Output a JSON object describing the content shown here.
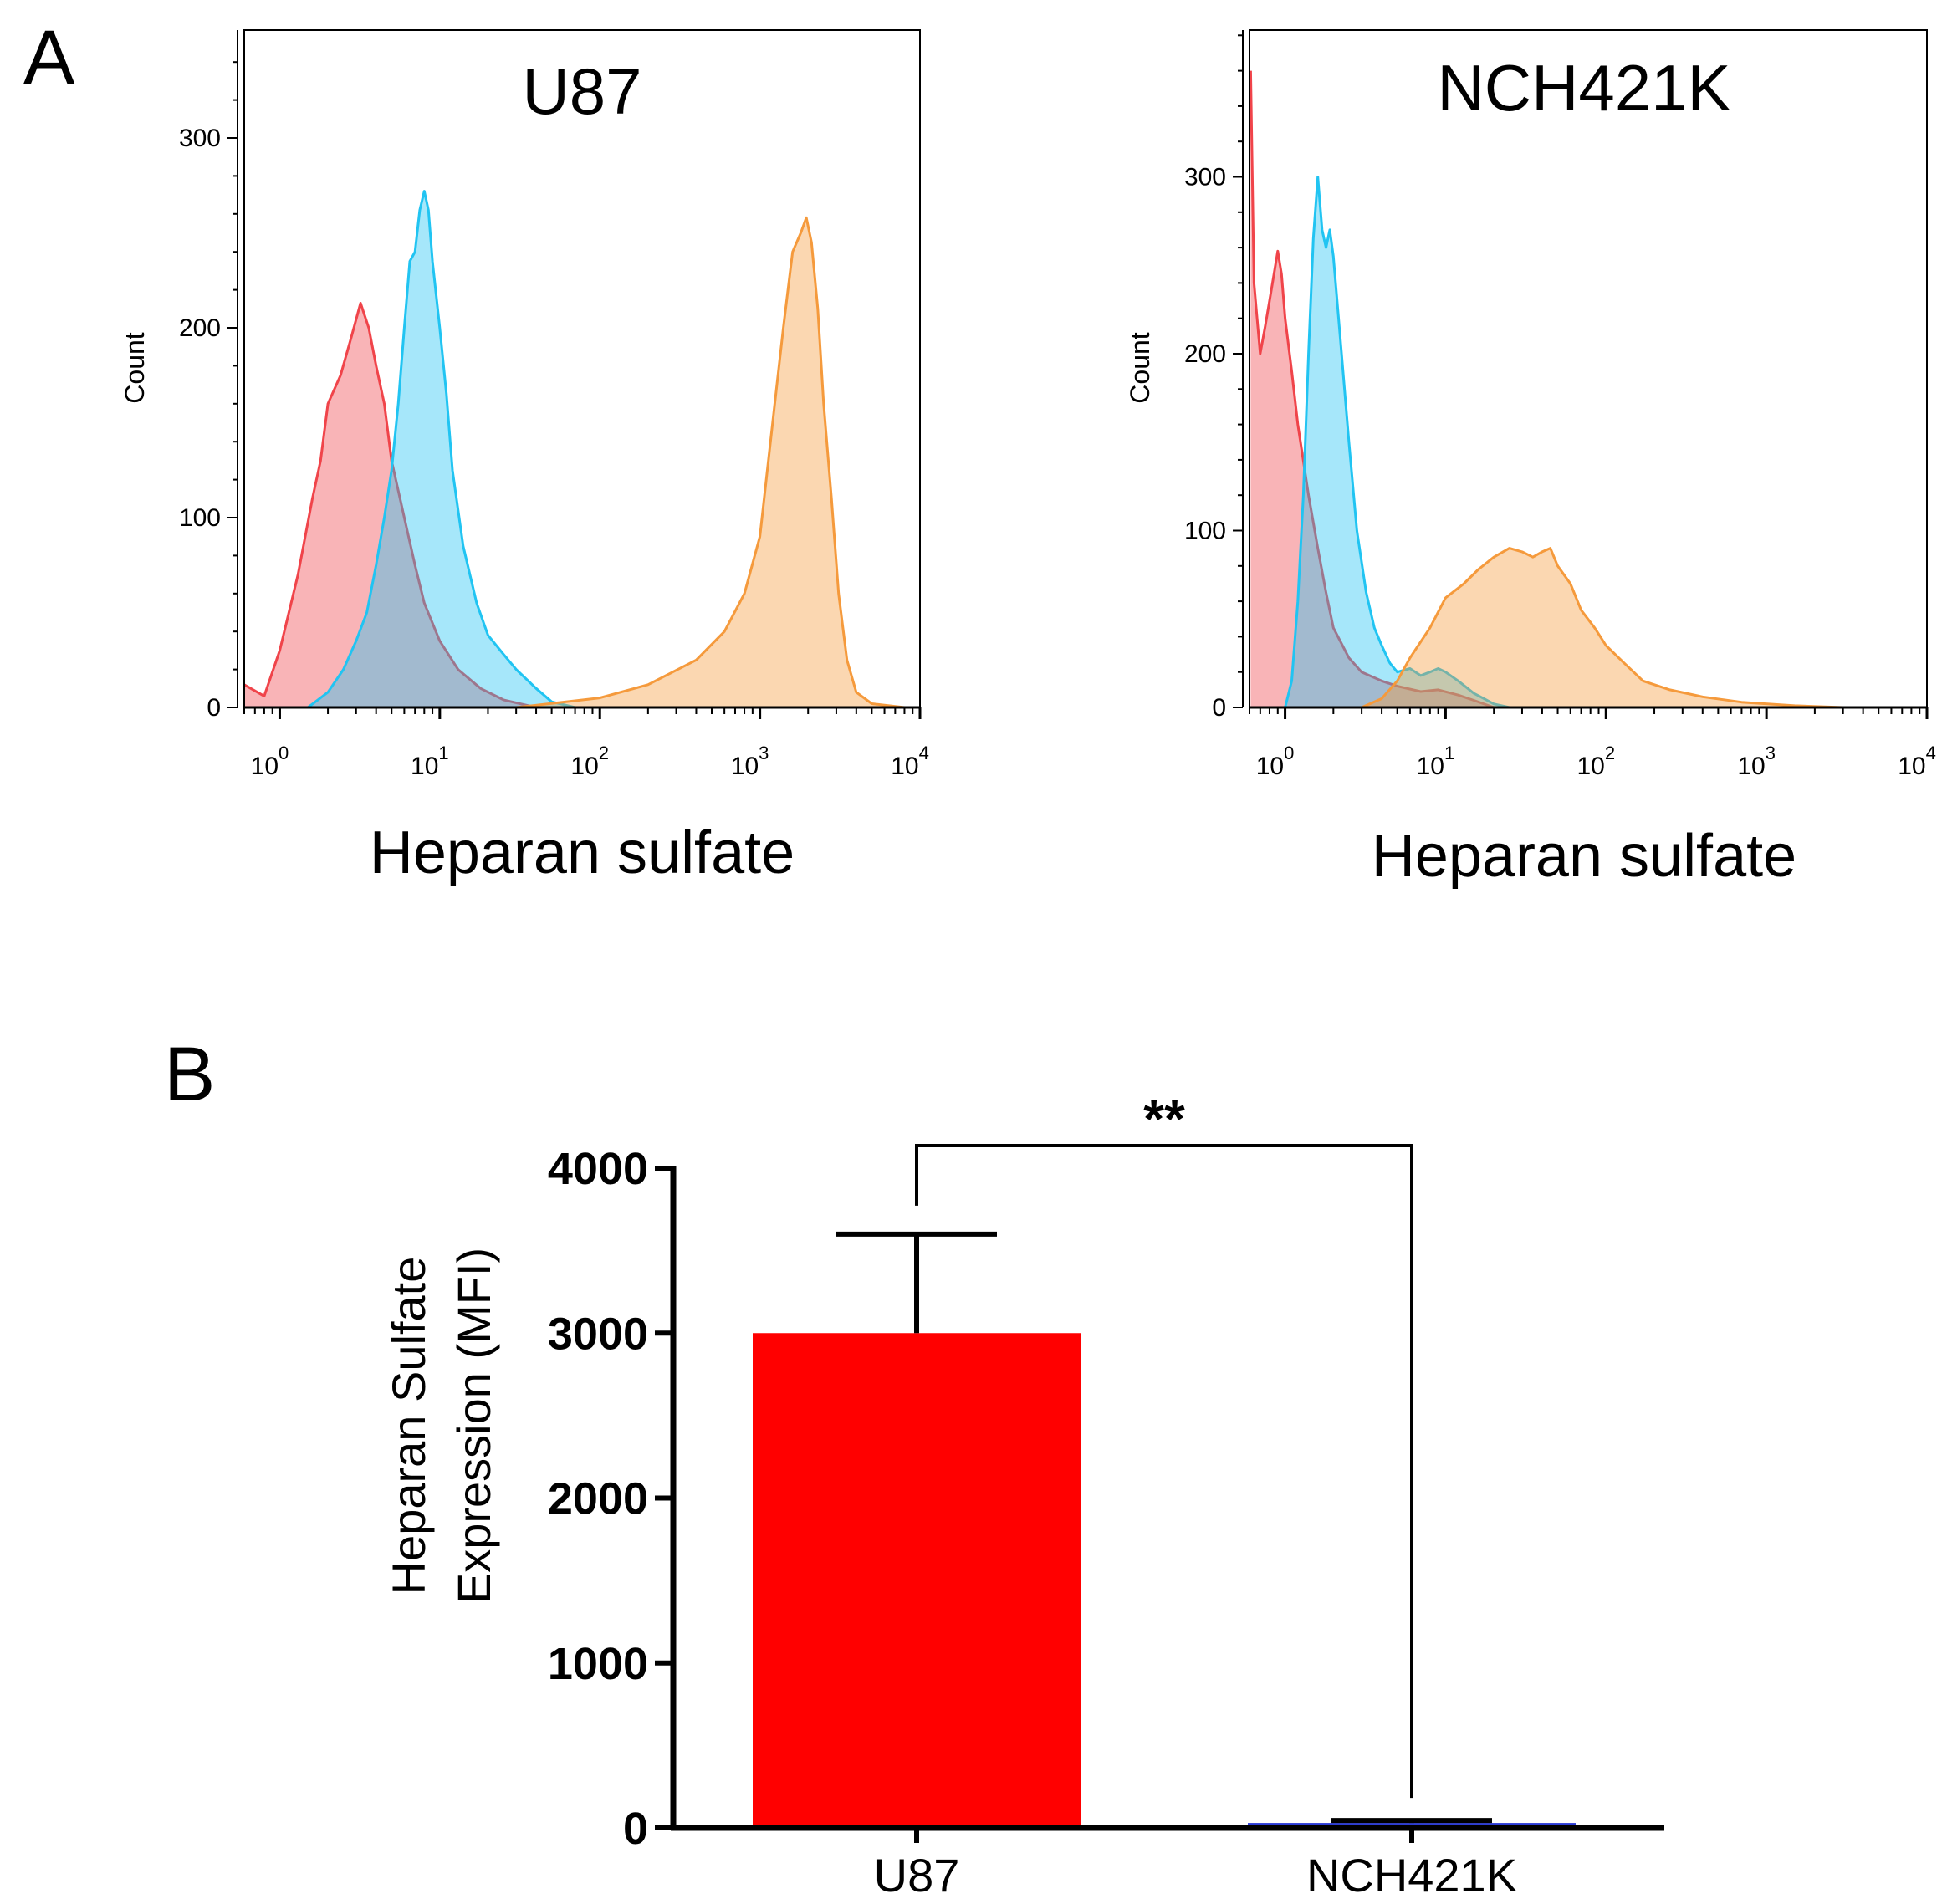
{
  "panels": {
    "a": "A",
    "b": "B"
  },
  "colors": {
    "red": "#f0444a",
    "blue": "#21c4f2",
    "orange": "#f59a3c",
    "bar_red": "#ff0000",
    "bar_blue": "#2b3bd6"
  },
  "chart_data": [
    {
      "type": "area",
      "panel": "A",
      "title": "U87",
      "xlabel": "Heparan sulfate",
      "ylabel": "Count",
      "xscale": "log",
      "xlim": [
        0.6,
        10000
      ],
      "ylim": [
        0,
        360
      ],
      "yticks": [
        0,
        100,
        200,
        300
      ],
      "xticks": [
        {
          "base": "10",
          "exp": "0"
        },
        {
          "base": "10",
          "exp": "1"
        },
        {
          "base": "10",
          "exp": "2"
        },
        {
          "base": "10",
          "exp": "3"
        },
        {
          "base": "10",
          "exp": "4"
        }
      ],
      "series": [
        {
          "color": "red",
          "points": [
            [
              0.6,
              12
            ],
            [
              0.8,
              6
            ],
            [
              1,
              30
            ],
            [
              1.3,
              70
            ],
            [
              1.6,
              110
            ],
            [
              1.8,
              130
            ],
            [
              2,
              160
            ],
            [
              2.4,
              175
            ],
            [
              2.8,
              195
            ],
            [
              3.2,
              213
            ],
            [
              3.6,
              200
            ],
            [
              4,
              180
            ],
            [
              4.5,
              160
            ],
            [
              5,
              130
            ],
            [
              6,
              100
            ],
            [
              7,
              75
            ],
            [
              8,
              55
            ],
            [
              10,
              35
            ],
            [
              13,
              20
            ],
            [
              18,
              10
            ],
            [
              25,
              4
            ],
            [
              40,
              0
            ]
          ]
        },
        {
          "color": "blue",
          "points": [
            [
              1.5,
              0
            ],
            [
              2,
              8
            ],
            [
              2.5,
              20
            ],
            [
              3,
              35
            ],
            [
              3.5,
              50
            ],
            [
              4,
              75
            ],
            [
              4.5,
              100
            ],
            [
              5,
              125
            ],
            [
              5.5,
              160
            ],
            [
              6,
              200
            ],
            [
              6.5,
              235
            ],
            [
              7,
              240
            ],
            [
              7.5,
              262
            ],
            [
              8,
              272
            ],
            [
              8.5,
              262
            ],
            [
              9,
              235
            ],
            [
              10,
              200
            ],
            [
              11,
              165
            ],
            [
              12,
              125
            ],
            [
              14,
              85
            ],
            [
              17,
              55
            ],
            [
              20,
              38
            ],
            [
              25,
              28
            ],
            [
              30,
              20
            ],
            [
              40,
              10
            ],
            [
              50,
              3
            ],
            [
              70,
              0
            ]
          ]
        },
        {
          "color": "orange",
          "points": [
            [
              30,
              0
            ],
            [
              100,
              5
            ],
            [
              200,
              12
            ],
            [
              400,
              25
            ],
            [
              600,
              40
            ],
            [
              800,
              60
            ],
            [
              1000,
              90
            ],
            [
              1200,
              150
            ],
            [
              1400,
              200
            ],
            [
              1600,
              240
            ],
            [
              1800,
              250
            ],
            [
              1950,
              258
            ],
            [
              2100,
              245
            ],
            [
              2300,
              210
            ],
            [
              2500,
              160
            ],
            [
              2800,
              110
            ],
            [
              3100,
              60
            ],
            [
              3500,
              25
            ],
            [
              4000,
              8
            ],
            [
              5000,
              2
            ],
            [
              8000,
              0
            ]
          ]
        }
      ]
    },
    {
      "type": "area",
      "panel": "A",
      "title": "NCH421K",
      "xlabel": "Heparan sulfate",
      "ylabel": "Count",
      "xscale": "log",
      "xlim": [
        0.6,
        10000
      ],
      "ylim": [
        0,
        380
      ],
      "yticks": [
        0,
        100,
        200,
        300
      ],
      "xticks": [
        {
          "base": "10",
          "exp": "0"
        },
        {
          "base": "10",
          "exp": "1"
        },
        {
          "base": "10",
          "exp": "2"
        },
        {
          "base": "10",
          "exp": "3"
        },
        {
          "base": "10",
          "exp": "4"
        }
      ],
      "series": [
        {
          "color": "red",
          "points": [
            [
              0.61,
              360
            ],
            [
              0.64,
              240
            ],
            [
              0.7,
              200
            ],
            [
              0.75,
              215
            ],
            [
              0.8,
              230
            ],
            [
              0.9,
              258
            ],
            [
              0.95,
              245
            ],
            [
              1,
              220
            ],
            [
              1.1,
              190
            ],
            [
              1.2,
              160
            ],
            [
              1.4,
              120
            ],
            [
              1.6,
              90
            ],
            [
              1.8,
              65
            ],
            [
              2,
              45
            ],
            [
              2.5,
              28
            ],
            [
              3,
              20
            ],
            [
              4,
              15
            ],
            [
              5,
              12
            ],
            [
              7,
              9
            ],
            [
              9,
              10
            ],
            [
              12,
              7
            ],
            [
              15,
              4
            ],
            [
              20,
              0
            ]
          ]
        },
        {
          "color": "blue",
          "points": [
            [
              1,
              0
            ],
            [
              1.1,
              15
            ],
            [
              1.2,
              60
            ],
            [
              1.3,
              120
            ],
            [
              1.4,
              200
            ],
            [
              1.5,
              265
            ],
            [
              1.6,
              300
            ],
            [
              1.7,
              270
            ],
            [
              1.8,
              260
            ],
            [
              1.9,
              270
            ],
            [
              2,
              255
            ],
            [
              2.2,
              210
            ],
            [
              2.5,
              150
            ],
            [
              2.8,
              100
            ],
            [
              3.2,
              65
            ],
            [
              3.6,
              45
            ],
            [
              4,
              35
            ],
            [
              4.5,
              25
            ],
            [
              5,
              20
            ],
            [
              6,
              22
            ],
            [
              7,
              18
            ],
            [
              8,
              20
            ],
            [
              9,
              22
            ],
            [
              10,
              20
            ],
            [
              12,
              15
            ],
            [
              15,
              8
            ],
            [
              20,
              2
            ],
            [
              25,
              0
            ]
          ]
        },
        {
          "color": "orange",
          "points": [
            [
              3,
              0
            ],
            [
              4,
              5
            ],
            [
              5,
              15
            ],
            [
              6,
              28
            ],
            [
              8,
              45
            ],
            [
              10,
              62
            ],
            [
              13,
              70
            ],
            [
              16,
              78
            ],
            [
              20,
              85
            ],
            [
              25,
              90
            ],
            [
              30,
              88
            ],
            [
              35,
              85
            ],
            [
              40,
              88
            ],
            [
              45,
              90
            ],
            [
              50,
              80
            ],
            [
              60,
              70
            ],
            [
              70,
              55
            ],
            [
              85,
              45
            ],
            [
              100,
              35
            ],
            [
              130,
              25
            ],
            [
              170,
              15
            ],
            [
              250,
              10
            ],
            [
              400,
              6
            ],
            [
              700,
              3
            ],
            [
              1500,
              1
            ],
            [
              3000,
              0
            ],
            [
              10000,
              0
            ]
          ]
        }
      ]
    },
    {
      "type": "bar",
      "panel": "B",
      "title": "",
      "xlabel": "",
      "ylabel": "Heparan Sulfate Expression (MFI)",
      "ylabel_lines": [
        "Heparan Sulfate",
        "Expression (MFI)"
      ],
      "categories": [
        "U87",
        "NCH421K"
      ],
      "values": [
        3000,
        30
      ],
      "errors": [
        600,
        15
      ],
      "bar_colors": [
        "bar_red",
        "bar_blue"
      ],
      "ylim": [
        0,
        4000
      ],
      "yticks": [
        0,
        1000,
        2000,
        3000,
        4000
      ],
      "significance": "**"
    }
  ]
}
